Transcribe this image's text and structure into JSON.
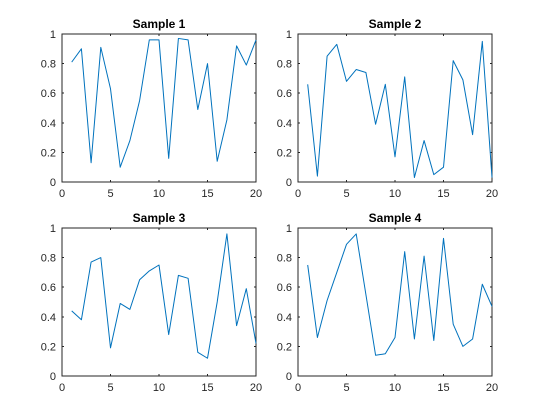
{
  "chart_data": [
    {
      "type": "line",
      "title": "Sample 1",
      "xlabel": "",
      "ylabel": "",
      "xlim": [
        0,
        20
      ],
      "ylim": [
        0,
        1
      ],
      "xticks": [
        0,
        5,
        10,
        15,
        20
      ],
      "yticks": [
        0,
        0.2,
        0.4,
        0.6,
        0.8,
        1
      ],
      "grid": false,
      "series": [
        {
          "x": [
            1,
            2,
            3,
            4,
            5,
            6,
            7,
            8,
            9,
            10,
            11,
            12,
            13,
            14,
            15,
            16,
            17,
            18,
            19,
            20
          ],
          "values": [
            0.81,
            0.9,
            0.13,
            0.91,
            0.63,
            0.1,
            0.28,
            0.55,
            0.96,
            0.96,
            0.16,
            0.97,
            0.96,
            0.49,
            0.8,
            0.14,
            0.42,
            0.92,
            0.79,
            0.96
          ],
          "color": "#0072BD"
        }
      ]
    },
    {
      "type": "line",
      "title": "Sample 2",
      "xlabel": "",
      "ylabel": "",
      "xlim": [
        0,
        20
      ],
      "ylim": [
        0,
        1
      ],
      "xticks": [
        0,
        5,
        10,
        15,
        20
      ],
      "yticks": [
        0,
        0.2,
        0.4,
        0.6,
        0.8,
        1
      ],
      "grid": false,
      "series": [
        {
          "x": [
            1,
            2,
            3,
            4,
            5,
            6,
            7,
            8,
            9,
            10,
            11,
            12,
            13,
            14,
            15,
            16,
            17,
            18,
            19,
            20
          ],
          "values": [
            0.66,
            0.04,
            0.85,
            0.93,
            0.68,
            0.76,
            0.74,
            0.39,
            0.66,
            0.17,
            0.71,
            0.03,
            0.28,
            0.05,
            0.1,
            0.82,
            0.69,
            0.32,
            0.95,
            0.03
          ],
          "color": "#0072BD"
        }
      ]
    },
    {
      "type": "line",
      "title": "Sample 3",
      "xlabel": "",
      "ylabel": "",
      "xlim": [
        0,
        20
      ],
      "ylim": [
        0,
        1
      ],
      "xticks": [
        0,
        5,
        10,
        15,
        20
      ],
      "yticks": [
        0,
        0.2,
        0.4,
        0.6,
        0.8,
        1
      ],
      "grid": false,
      "series": [
        {
          "x": [
            1,
            2,
            3,
            4,
            5,
            6,
            7,
            8,
            9,
            10,
            11,
            12,
            13,
            14,
            15,
            16,
            17,
            18,
            19,
            20
          ],
          "values": [
            0.44,
            0.38,
            0.77,
            0.8,
            0.19,
            0.49,
            0.45,
            0.65,
            0.71,
            0.75,
            0.28,
            0.68,
            0.66,
            0.16,
            0.12,
            0.5,
            0.96,
            0.34,
            0.59,
            0.22
          ],
          "color": "#0072BD"
        }
      ]
    },
    {
      "type": "line",
      "title": "Sample 4",
      "xlabel": "",
      "ylabel": "",
      "xlim": [
        0,
        20
      ],
      "ylim": [
        0,
        1
      ],
      "xticks": [
        0,
        5,
        10,
        15,
        20
      ],
      "yticks": [
        0,
        0.2,
        0.4,
        0.6,
        0.8,
        1
      ],
      "grid": false,
      "series": [
        {
          "x": [
            1,
            2,
            3,
            4,
            5,
            6,
            7,
            8,
            9,
            10,
            11,
            12,
            13,
            14,
            15,
            16,
            17,
            18,
            19,
            20
          ],
          "values": [
            0.75,
            0.26,
            0.51,
            0.7,
            0.89,
            0.96,
            0.55,
            0.14,
            0.15,
            0.26,
            0.84,
            0.25,
            0.81,
            0.24,
            0.93,
            0.35,
            0.2,
            0.25,
            0.62,
            0.47
          ],
          "color": "#0072BD"
        }
      ]
    }
  ]
}
